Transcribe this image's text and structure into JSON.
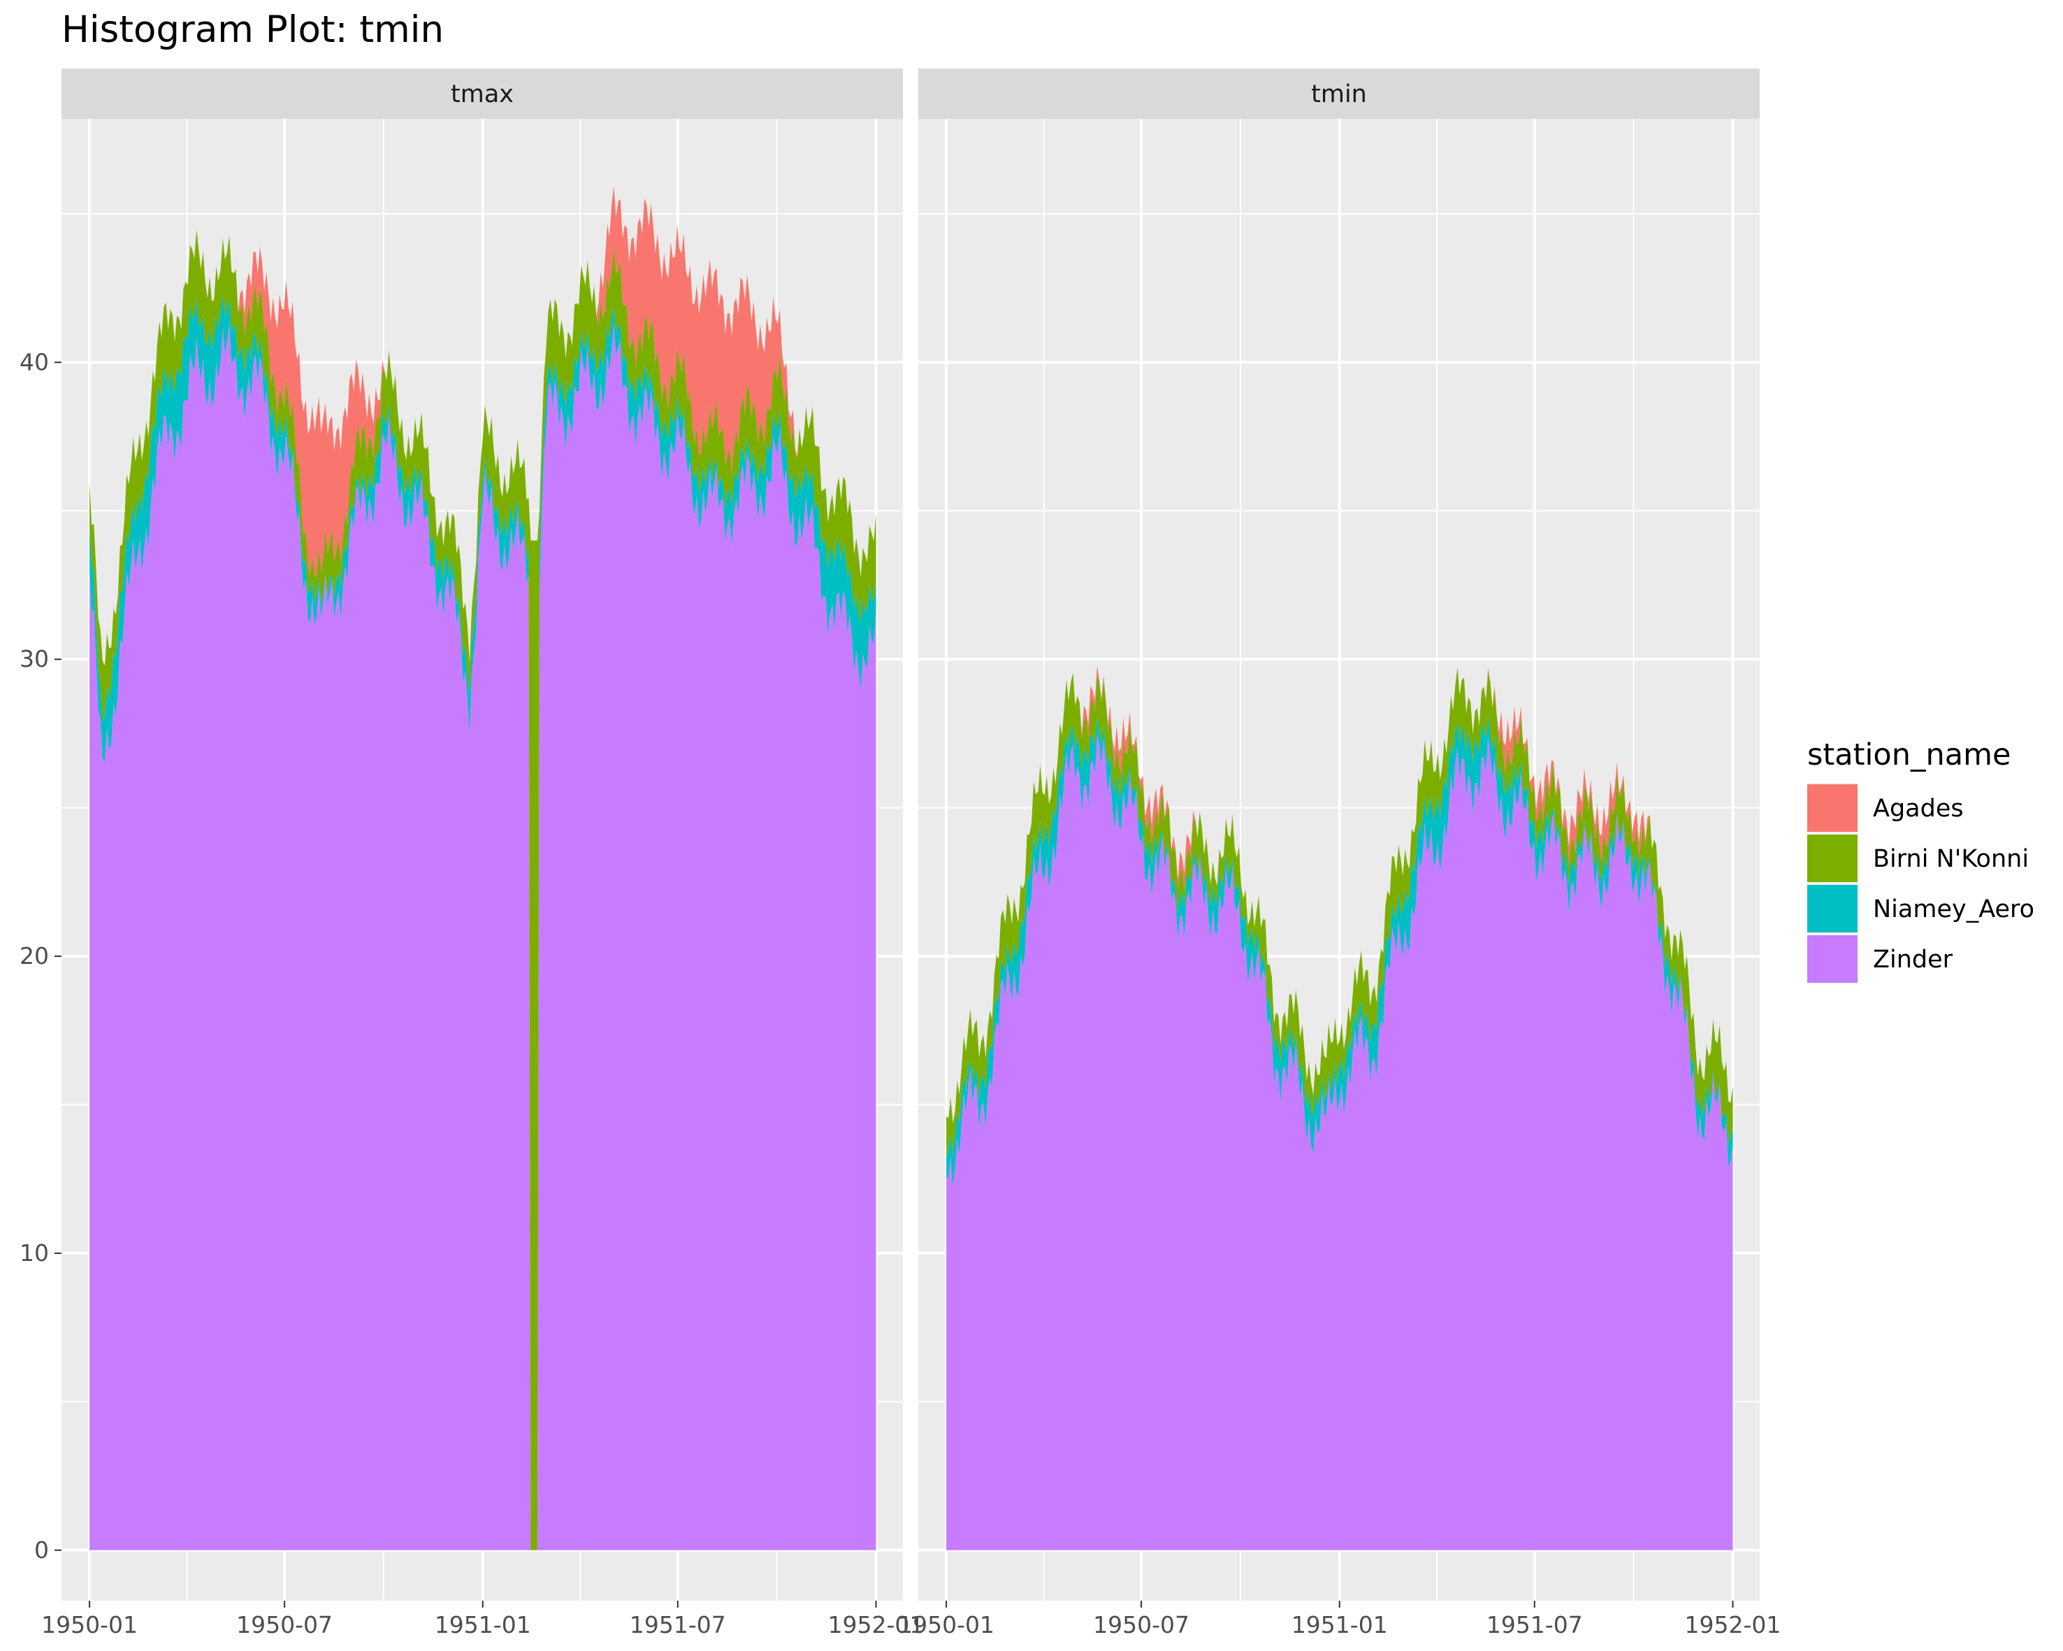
{
  "title": "Histogram Plot: tmin",
  "chart_data": {
    "type": "area",
    "stacked": true,
    "facet_by": "variable",
    "x_axis": {
      "type": "date",
      "range": [
        "1949-12-06",
        "1952-01-26"
      ],
      "ticks": [
        "1950-01",
        "1950-07",
        "1951-01",
        "1951-07",
        "1952-01"
      ]
    },
    "y_axis": {
      "range": [
        -1.7,
        48.2
      ],
      "ticks": [
        "0",
        "10",
        "20",
        "30",
        "40"
      ]
    },
    "grid": true,
    "legend": {
      "title": "station_name",
      "position": "right",
      "entries": [
        {
          "name": "Agades",
          "color": "#F8766D"
        },
        {
          "name": "Birni N'Konni",
          "color": "#7CAE00"
        },
        {
          "name": "Niamey_Aero",
          "color": "#00BFC4"
        },
        {
          "name": "Zinder",
          "color": "#C77CFF"
        }
      ]
    },
    "panels": [
      {
        "label": "tmax",
        "series": [
          {
            "name": "Zinder",
            "color": "#C77CFF",
            "points": [
              [
                "1950-01-01",
                33
              ],
              [
                "1950-01-12",
                26
              ],
              [
                "1950-02-01",
                31
              ],
              [
                "1950-03-01",
                36
              ],
              [
                "1950-04-01",
                39
              ],
              [
                "1950-05-01",
                40
              ],
              [
                "1950-06-01",
                39.5
              ],
              [
                "1950-07-01",
                37
              ],
              [
                "1950-07-20",
                33
              ],
              [
                "1950-08-05",
                31
              ],
              [
                "1950-09-01",
                34
              ],
              [
                "1950-10-01",
                37
              ],
              [
                "1950-11-01",
                35
              ],
              [
                "1950-12-01",
                32
              ],
              [
                "1950-12-20",
                29
              ],
              [
                "1951-01-01",
                35
              ],
              [
                "1951-01-25",
                34
              ],
              [
                "1951-02-10",
                33
              ],
              [
                "1951-02-22",
                33
              ],
              [
                "1951-03-01",
                38
              ],
              [
                "1951-04-01",
                39
              ],
              [
                "1951-05-01",
                40
              ],
              [
                "1951-06-01",
                38
              ],
              [
                "1951-07-01",
                37
              ],
              [
                "1951-08-01",
                35
              ],
              [
                "1951-09-01",
                35.5
              ],
              [
                "1951-10-01",
                36.5
              ],
              [
                "1951-11-01",
                34
              ],
              [
                "1951-12-01",
                31
              ],
              [
                "1952-01-01",
                30
              ]
            ]
          },
          {
            "name": "Niamey_Aero",
            "color": "#00BFC4",
            "points": [
              [
                "1950-01-01",
                1.5
              ],
              [
                "1950-04-01",
                2
              ],
              [
                "1950-06-01",
                1
              ],
              [
                "1950-08-01",
                0.5
              ],
              [
                "1950-10-01",
                0.8
              ],
              [
                "1951-01-01",
                0.8
              ],
              [
                "1951-04-01",
                1
              ],
              [
                "1951-06-01",
                1
              ],
              [
                "1951-08-01",
                0.8
              ],
              [
                "1951-10-01",
                1
              ],
              [
                "1951-12-01",
                2
              ],
              [
                "1952-01-01",
                1.5
              ]
            ]
          },
          {
            "name": "Birni N'Konni",
            "color": "#7CAE00",
            "points": [
              [
                "1950-01-01",
                1.5
              ],
              [
                "1950-04-01",
                2
              ],
              [
                "1950-06-01",
                1.5
              ],
              [
                "1950-08-01",
                1
              ],
              [
                "1950-10-01",
                1.5
              ],
              [
                "1951-01-01",
                1.5
              ],
              [
                "1951-04-01",
                2
              ],
              [
                "1951-06-01",
                1.5
              ],
              [
                "1951-08-01",
                1.5
              ],
              [
                "1951-10-01",
                1.5
              ],
              [
                "1951-12-01",
                2
              ],
              [
                "1952-01-01",
                2
              ]
            ]
          },
          {
            "name": "Agades",
            "color": "#F8766D",
            "points": [
              [
                "1950-01-01",
                0
              ],
              [
                "1950-05-15",
                0
              ],
              [
                "1950-06-01",
                1
              ],
              [
                "1950-07-01",
                3
              ],
              [
                "1950-08-01",
                5
              ],
              [
                "1950-09-01",
                3
              ],
              [
                "1950-09-30",
                0
              ],
              [
                "1951-04-15",
                0
              ],
              [
                "1951-05-01",
                2
              ],
              [
                "1951-06-01",
                4
              ],
              [
                "1951-07-01",
                4
              ],
              [
                "1951-08-01",
                5
              ],
              [
                "1951-09-01",
                4
              ],
              [
                "1951-10-01",
                2
              ],
              [
                "1951-10-20",
                0
              ],
              [
                "1952-01-01",
                0
              ]
            ]
          }
        ],
        "gap": {
          "from": "1951-02-14",
          "to": "1951-02-22",
          "value": 34,
          "station": "Birni N'Konni"
        }
      },
      {
        "label": "tmin",
        "series": [
          {
            "name": "Zinder",
            "color": "#C77CFF",
            "points": [
              [
                "1950-01-01",
                13
              ],
              [
                "1950-01-15",
                14.5
              ],
              [
                "1950-02-01",
                15
              ],
              [
                "1950-03-01",
                19
              ],
              [
                "1950-04-01",
                23
              ],
              [
                "1950-05-01",
                26.5
              ],
              [
                "1950-06-01",
                26
              ],
              [
                "1950-07-01",
                24
              ],
              [
                "1950-08-01",
                22
              ],
              [
                "1950-09-01",
                22
              ],
              [
                "1950-10-01",
                21.5
              ],
              [
                "1950-11-01",
                17
              ],
              [
                "1950-12-01",
                15
              ],
              [
                "1950-12-20",
                14
              ],
              [
                "1951-01-01",
                16
              ],
              [
                "1951-02-01",
                17
              ],
              [
                "1951-03-01",
                21
              ],
              [
                "1951-04-01",
                24
              ],
              [
                "1951-05-01",
                26.5
              ],
              [
                "1951-06-01",
                25.5
              ],
              [
                "1951-07-01",
                24
              ],
              [
                "1951-08-01",
                23
              ],
              [
                "1951-09-01",
                23
              ],
              [
                "1951-10-01",
                23.5
              ],
              [
                "1951-11-01",
                20
              ],
              [
                "1951-12-01",
                15
              ],
              [
                "1952-01-01",
                14
              ]
            ]
          },
          {
            "name": "Niamey_Aero",
            "color": "#00BFC4",
            "points": [
              [
                "1950-01-01",
                0.7
              ],
              [
                "1950-04-01",
                1.2
              ],
              [
                "1950-06-01",
                0.8
              ],
              [
                "1950-08-01",
                0.5
              ],
              [
                "1950-10-01",
                0.8
              ],
              [
                "1951-01-01",
                0.8
              ],
              [
                "1951-04-01",
                1.5
              ],
              [
                "1951-06-01",
                1
              ],
              [
                "1951-08-01",
                0.5
              ],
              [
                "1951-10-01",
                0.5
              ],
              [
                "1951-12-01",
                0.5
              ],
              [
                "1952-01-01",
                0.5
              ]
            ]
          },
          {
            "name": "Birni N'Konni",
            "color": "#7CAE00",
            "points": [
              [
                "1950-01-01",
                1.2
              ],
              [
                "1950-04-01",
                1.5
              ],
              [
                "1950-06-01",
                1.2
              ],
              [
                "1950-08-01",
                1
              ],
              [
                "1950-10-01",
                1
              ],
              [
                "1951-01-01",
                1.2
              ],
              [
                "1951-04-01",
                1.5
              ],
              [
                "1951-06-01",
                1.2
              ],
              [
                "1951-08-01",
                1
              ],
              [
                "1951-10-01",
                1
              ],
              [
                "1951-12-01",
                1.5
              ],
              [
                "1952-01-01",
                1.5
              ]
            ]
          },
          {
            "name": "Agades",
            "color": "#F8766D",
            "points": [
              [
                "1950-01-01",
                0
              ],
              [
                "1950-05-01",
                0
              ],
              [
                "1950-06-01",
                0.4
              ],
              [
                "1950-08-01",
                0.4
              ],
              [
                "1950-09-01",
                0
              ],
              [
                "1951-05-15",
                0
              ],
              [
                "1951-06-01",
                0.6
              ],
              [
                "1951-07-01",
                0.4
              ],
              [
                "1951-08-01",
                0.5
              ],
              [
                "1951-09-01",
                0.6
              ],
              [
                "1951-10-01",
                0.4
              ],
              [
                "1951-10-20",
                0
              ],
              [
                "1952-01-01",
                0
              ]
            ]
          }
        ]
      }
    ]
  }
}
